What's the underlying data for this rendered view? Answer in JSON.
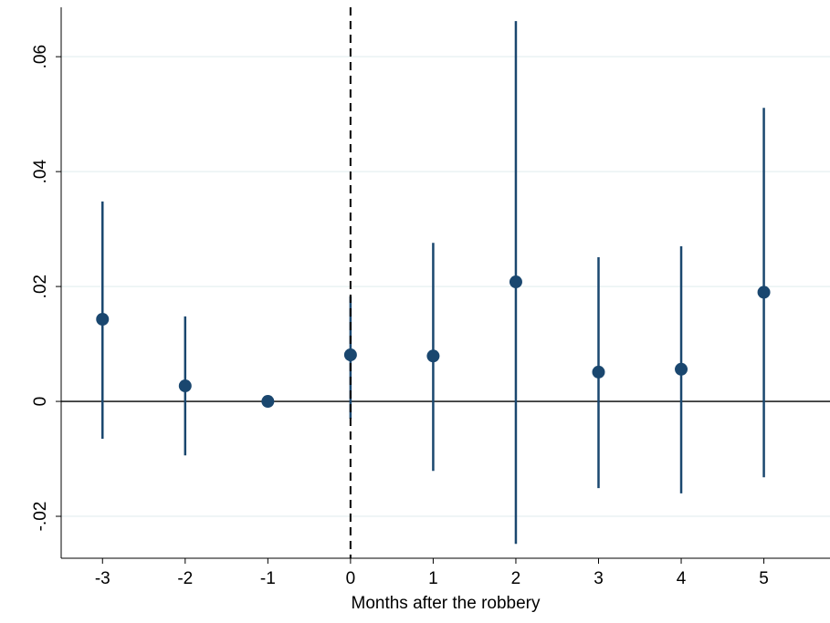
{
  "chart_data": {
    "type": "coefplot",
    "x_label": "Months after the robbery",
    "x": [
      -3,
      -2,
      -1,
      0,
      1,
      2,
      3,
      4,
      5
    ],
    "series": [
      {
        "color": "#1a476f",
        "values": [
          0.0143,
          0.0027,
          0,
          0.0081,
          0.0079,
          0.0208,
          0.0051,
          0.0056,
          0.019
        ],
        "lower": [
          -0.0065,
          -0.0094,
          0,
          -0.003,
          -0.0121,
          -0.0248,
          -0.0151,
          -0.016,
          -0.0132
        ],
        "upper": [
          0.0348,
          0.0148,
          0,
          0.0183,
          0.0276,
          0.0662,
          0.0251,
          0.027,
          0.0511
        ]
      }
    ],
    "xlim": [
      -3.5,
      5.8
    ],
    "ylim": [
      -0.0273,
      0.0686
    ],
    "xticks": [
      -3,
      -2,
      -1,
      0,
      1,
      2,
      3,
      4,
      5
    ],
    "yticks": [
      {
        "value": -0.02,
        "label": "-.02"
      },
      0,
      {
        "value": 0.02,
        "label": ".02"
      },
      {
        "value": 0.04,
        "label": ".04"
      },
      {
        "value": 0.06,
        "label": ".06"
      }
    ],
    "grid": true,
    "vline": 0,
    "hline": 0
  }
}
